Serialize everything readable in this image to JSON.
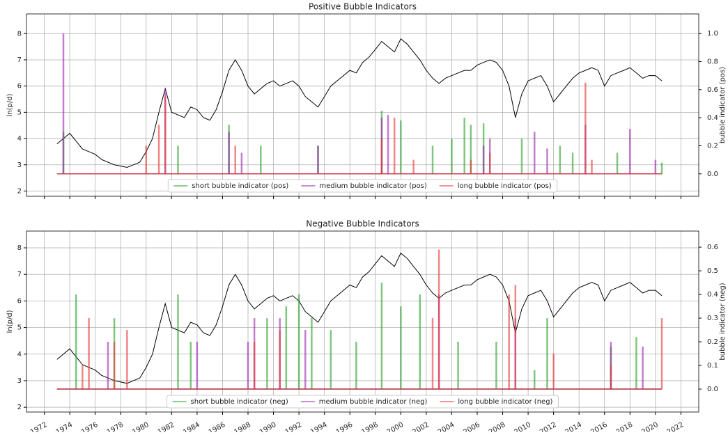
{
  "chart_data": [
    {
      "type": "line",
      "title": "Positive Bubble Indicators",
      "ylabel": "ln(p/d)",
      "y2label": "bubble indicator (pos)",
      "x": [
        1973,
        1973.5,
        1974,
        1974.5,
        1975,
        1975.5,
        1976,
        1976.5,
        1977,
        1977.5,
        1978,
        1978.5,
        1979,
        1979.5,
        1980,
        1980.5,
        1981,
        1981.5,
        1982,
        1982.5,
        1983,
        1983.5,
        1984,
        1984.5,
        1985,
        1985.5,
        1986,
        1986.5,
        1987,
        1987.5,
        1988,
        1988.5,
        1989,
        1989.5,
        1990,
        1990.5,
        1991,
        1991.5,
        1992,
        1992.5,
        1993,
        1993.5,
        1994,
        1994.5,
        1995,
        1995.5,
        1996,
        1996.5,
        1997,
        1997.5,
        1998,
        1998.5,
        1999,
        1999.5,
        2000,
        2000.5,
        2001,
        2001.5,
        2002,
        2002.5,
        2003,
        2003.5,
        2004,
        2004.5,
        2005,
        2005.5,
        2006,
        2006.5,
        2007,
        2007.5,
        2008,
        2008.5,
        2009,
        2009.5,
        2010,
        2010.5,
        2011,
        2011.5,
        2012,
        2012.5,
        2013,
        2013.5,
        2014,
        2014.5,
        2015,
        2015.5,
        2016,
        2016.5,
        2017,
        2017.5,
        2018,
        2018.5,
        2019,
        2019.5,
        2020,
        2020.5
      ],
      "values": [
        3.8,
        4.0,
        4.2,
        3.9,
        3.6,
        3.5,
        3.4,
        3.2,
        3.1,
        3.0,
        2.95,
        2.9,
        3.0,
        3.1,
        3.5,
        4.0,
        5.0,
        5.9,
        5.0,
        4.9,
        4.8,
        5.2,
        5.1,
        4.8,
        4.7,
        5.1,
        5.8,
        6.6,
        7.0,
        6.6,
        6.0,
        5.7,
        5.9,
        6.1,
        6.2,
        6.0,
        6.1,
        6.2,
        6.0,
        5.6,
        5.4,
        5.2,
        5.6,
        6.0,
        6.2,
        6.4,
        6.6,
        6.5,
        6.9,
        7.1,
        7.4,
        7.7,
        7.5,
        7.3,
        7.8,
        7.6,
        7.3,
        7.0,
        6.6,
        6.3,
        6.1,
        6.3,
        6.4,
        6.5,
        6.6,
        6.6,
        6.8,
        6.9,
        7.0,
        6.9,
        6.6,
        6.0,
        4.8,
        5.7,
        6.2,
        6.3,
        6.4,
        6.0,
        5.4,
        5.7,
        6.0,
        6.3,
        6.5,
        6.6,
        6.7,
        6.6,
        6.0,
        6.4,
        6.5,
        6.6,
        6.7,
        6.5,
        6.3,
        6.4,
        6.4,
        6.2
      ],
      "color": "#000000",
      "series": [
        {
          "name": "short bubble indicator (pos)",
          "color": "#2ca02c",
          "axis": "y2",
          "values": [
            0,
            0.3,
            0,
            0,
            0,
            0,
            0,
            0,
            0,
            0,
            0,
            0,
            0,
            0,
            0,
            0,
            0,
            0,
            0,
            0.2,
            0,
            0,
            0,
            0,
            0,
            0,
            0,
            0.35,
            0,
            0,
            0,
            0,
            0.2,
            0,
            0,
            0,
            0,
            0,
            0,
            0,
            0,
            0.2,
            0,
            0,
            0,
            0,
            0,
            0,
            0,
            0,
            0,
            0.45,
            0,
            0,
            0.38,
            0,
            0,
            0,
            0,
            0.2,
            0,
            0,
            0.25,
            0,
            0.4,
            0.35,
            0,
            0.36,
            0,
            0,
            0,
            0,
            0,
            0.25,
            0,
            0,
            0,
            0,
            0,
            0.2,
            0,
            0.15,
            0,
            0,
            0,
            0,
            0,
            0,
            0.15,
            0,
            0,
            0,
            0,
            0,
            0,
            0.08
          ]
        },
        {
          "name": "medium bubble indicator (pos)",
          "color": "#9c27b0",
          "axis": "y2",
          "values": [
            0,
            1.0,
            0,
            0,
            0,
            0,
            0,
            0,
            0,
            0,
            0,
            0,
            0,
            0,
            0,
            0,
            0,
            0.6,
            0,
            0,
            0,
            0,
            0,
            0,
            0,
            0,
            0,
            0.3,
            0,
            0.15,
            0,
            0,
            0,
            0,
            0,
            0,
            0,
            0,
            0,
            0,
            0,
            0.2,
            0,
            0,
            0,
            0,
            0,
            0,
            0,
            0,
            0,
            0.4,
            0.42,
            0,
            0,
            0,
            0,
            0,
            0,
            0,
            0,
            0,
            0,
            0,
            0,
            0,
            0,
            0.2,
            0.25,
            0,
            0,
            0,
            0,
            0,
            0,
            0.3,
            0,
            0.18,
            0,
            0,
            0,
            0,
            0,
            0.35,
            0,
            0,
            0,
            0,
            0,
            0,
            0.32,
            0,
            0,
            0,
            0.1,
            0
          ]
        },
        {
          "name": "long bubble indicator (pos)",
          "color": "#e53935",
          "axis": "y2",
          "values": [
            0,
            0,
            0,
            0,
            0,
            0,
            0,
            0,
            0,
            0,
            0,
            0,
            0,
            0,
            0.2,
            0,
            0.35,
            0.55,
            0,
            0,
            0,
            0,
            0,
            0,
            0,
            0,
            0,
            0,
            0.2,
            0,
            0,
            0,
            0,
            0,
            0,
            0,
            0,
            0,
            0,
            0,
            0,
            0,
            0,
            0,
            0,
            0,
            0,
            0,
            0,
            0,
            0,
            0.25,
            0,
            0.4,
            0,
            0,
            0.1,
            0,
            0,
            0,
            0,
            0,
            0,
            0,
            0,
            0.1,
            0,
            0,
            0.15,
            0,
            0,
            0,
            0,
            0,
            0,
            0,
            0,
            0,
            0,
            0,
            0,
            0,
            0,
            0.65,
            0.1,
            0,
            0,
            0,
            0,
            0,
            0,
            0,
            0,
            0,
            0,
            0
          ]
        }
      ],
      "xlim": [
        1970.6,
        2023.4
      ],
      "ylim": [
        1.8,
        8.75
      ],
      "yticks": [
        2,
        3,
        4,
        5,
        6,
        7,
        8
      ],
      "y2lim": [
        -0.16,
        1.14
      ],
      "y2ticks": [
        {
          "value": 0,
          "label": "0.0"
        },
        0.2,
        0.4,
        0.6,
        0.8,
        {
          "value": 1,
          "label": "1.0"
        }
      ],
      "grid": true,
      "legend": "lower center"
    },
    {
      "type": "line",
      "title": "Negative Bubble Indicators",
      "ylabel": "ln(p/d)",
      "y2label": "bubble indicator (neg)",
      "x": [
        1973,
        1973.5,
        1974,
        1974.5,
        1975,
        1975.5,
        1976,
        1976.5,
        1977,
        1977.5,
        1978,
        1978.5,
        1979,
        1979.5,
        1980,
        1980.5,
        1981,
        1981.5,
        1982,
        1982.5,
        1983,
        1983.5,
        1984,
        1984.5,
        1985,
        1985.5,
        1986,
        1986.5,
        1987,
        1987.5,
        1988,
        1988.5,
        1989,
        1989.5,
        1990,
        1990.5,
        1991,
        1991.5,
        1992,
        1992.5,
        1993,
        1993.5,
        1994,
        1994.5,
        1995,
        1995.5,
        1996,
        1996.5,
        1997,
        1997.5,
        1998,
        1998.5,
        1999,
        1999.5,
        2000,
        2000.5,
        2001,
        2001.5,
        2002,
        2002.5,
        2003,
        2003.5,
        2004,
        2004.5,
        2005,
        2005.5,
        2006,
        2006.5,
        2007,
        2007.5,
        2008,
        2008.5,
        2009,
        2009.5,
        2010,
        2010.5,
        2011,
        2011.5,
        2012,
        2012.5,
        2013,
        2013.5,
        2014,
        2014.5,
        2015,
        2015.5,
        2016,
        2016.5,
        2017,
        2017.5,
        2018,
        2018.5,
        2019,
        2019.5,
        2020,
        2020.5
      ],
      "values": [
        3.8,
        4.0,
        4.2,
        3.9,
        3.6,
        3.5,
        3.4,
        3.2,
        3.1,
        3.0,
        2.95,
        2.9,
        3.0,
        3.1,
        3.5,
        4.0,
        5.0,
        5.9,
        5.0,
        4.9,
        4.8,
        5.2,
        5.1,
        4.8,
        4.7,
        5.1,
        5.8,
        6.6,
        7.0,
        6.6,
        6.0,
        5.7,
        5.9,
        6.1,
        6.2,
        6.0,
        6.1,
        6.2,
        6.0,
        5.6,
        5.4,
        5.2,
        5.6,
        6.0,
        6.2,
        6.4,
        6.6,
        6.5,
        6.9,
        7.1,
        7.4,
        7.7,
        7.5,
        7.3,
        7.8,
        7.6,
        7.3,
        7.0,
        6.6,
        6.3,
        6.1,
        6.3,
        6.4,
        6.5,
        6.6,
        6.6,
        6.8,
        6.9,
        7.0,
        6.9,
        6.6,
        6.0,
        4.8,
        5.7,
        6.2,
        6.3,
        6.4,
        6.0,
        5.4,
        5.7,
        6.0,
        6.3,
        6.5,
        6.6,
        6.7,
        6.6,
        6.0,
        6.4,
        6.5,
        6.6,
        6.7,
        6.5,
        6.3,
        6.4,
        6.4,
        6.2
      ],
      "color": "#000000",
      "series": [
        {
          "name": "short bubble indicator (neg)",
          "color": "#2ca02c",
          "axis": "y2",
          "values": [
            0,
            0,
            0,
            0.4,
            0,
            0,
            0,
            0,
            0,
            0.3,
            0,
            0,
            0,
            0,
            0,
            0,
            0,
            0,
            0,
            0.4,
            0,
            0.2,
            0,
            0,
            0,
            0,
            0,
            0,
            0,
            0,
            0,
            0,
            0,
            0.3,
            0,
            0,
            0.35,
            0,
            0.4,
            0,
            0.3,
            0,
            0,
            0.25,
            0,
            0,
            0,
            0.2,
            0,
            0,
            0,
            0.45,
            0,
            0,
            0.35,
            0,
            0,
            0.4,
            0,
            0,
            0,
            0,
            0,
            0.2,
            0,
            0,
            0,
            0,
            0,
            0.2,
            0,
            0,
            0,
            0,
            0,
            0.08,
            0,
            0.3,
            0,
            0,
            0,
            0,
            0,
            0,
            0,
            0,
            0,
            0.18,
            0,
            0,
            0,
            0.22,
            0,
            0,
            0,
            0
          ]
        },
        {
          "name": "medium bubble indicator (neg)",
          "color": "#9c27b0",
          "axis": "y2",
          "values": [
            0,
            0,
            0,
            0,
            0,
            0,
            0,
            0,
            0.2,
            0,
            0,
            0,
            0,
            0,
            0,
            0,
            0,
            0,
            0,
            0,
            0,
            0,
            0.2,
            0,
            0,
            0,
            0,
            0,
            0,
            0,
            0.2,
            0.3,
            0,
            0,
            0,
            0.3,
            0,
            0,
            0,
            0.25,
            0,
            0,
            0,
            0,
            0,
            0,
            0,
            0,
            0,
            0,
            0,
            0,
            0,
            0,
            0,
            0,
            0,
            0,
            0,
            0,
            0.4,
            0,
            0,
            0,
            0,
            0,
            0,
            0,
            0,
            0,
            0,
            0,
            0.3,
            0,
            0,
            0,
            0,
            0,
            0,
            0,
            0,
            0,
            0,
            0,
            0,
            0,
            0,
            0.2,
            0,
            0,
            0,
            0,
            0.18,
            0,
            0,
            0
          ]
        },
        {
          "name": "long bubble indicator (neg)",
          "color": "#e53935",
          "axis": "y2",
          "values": [
            0,
            0,
            0,
            0,
            0.1,
            0.3,
            0,
            0,
            0,
            0.2,
            0,
            0.25,
            0,
            0,
            0,
            0,
            0,
            0,
            0,
            0,
            0,
            0,
            0,
            0,
            0,
            0,
            0,
            0,
            0,
            0,
            0,
            0.2,
            0,
            0,
            0,
            0.25,
            0,
            0,
            0,
            0,
            0,
            0,
            0,
            0,
            0,
            0,
            0,
            0,
            0,
            0,
            0,
            0,
            0,
            0,
            0,
            0,
            0,
            0,
            0,
            0.3,
            0.59,
            0,
            0,
            0,
            0,
            0,
            0,
            0,
            0,
            0,
            0,
            0.4,
            0.44,
            0,
            0,
            0,
            0,
            0,
            0.15,
            0,
            0,
            0,
            0,
            0,
            0,
            0,
            0,
            0.1,
            0,
            0,
            0,
            0,
            0,
            0,
            0,
            0.3
          ]
        }
      ],
      "xlim": [
        1970.6,
        2023.4
      ],
      "xticks": [
        1972,
        1974,
        1976,
        1978,
        1980,
        1982,
        1984,
        1986,
        1988,
        1990,
        1992,
        1994,
        1996,
        1998,
        2000,
        2002,
        2004,
        2006,
        2008,
        2010,
        2012,
        2014,
        2016,
        2018,
        2020,
        2022
      ],
      "ylim": [
        1.82,
        8.63
      ],
      "yticks": [
        2,
        3,
        4,
        5,
        6,
        7,
        8
      ],
      "y2lim": [
        -0.097,
        0.668
      ],
      "y2ticks": [
        {
          "value": 0,
          "label": "0.0"
        },
        0.1,
        0.2,
        0.3,
        0.4,
        0.5,
        0.6
      ],
      "grid": true,
      "legend": "lower center"
    }
  ]
}
